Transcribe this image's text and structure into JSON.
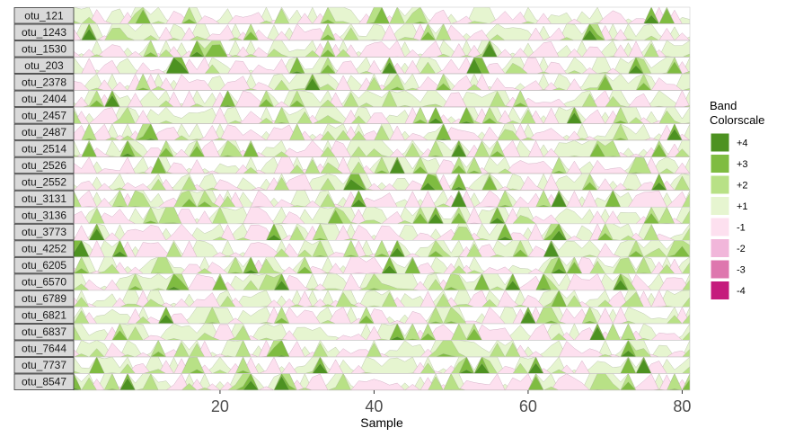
{
  "chart_data": {
    "type": "area",
    "subtype": "horizon",
    "xlabel": "Sample",
    "ylabel": "",
    "xlim": [
      1,
      81
    ],
    "x_ticks": [
      20,
      40,
      60,
      80
    ],
    "rows": [
      "otu_121",
      "otu_1243",
      "otu_1530",
      "otu_203",
      "otu_2378",
      "otu_2404",
      "otu_2457",
      "otu_2487",
      "otu_2514",
      "otu_2526",
      "otu_2552",
      "otu_3131",
      "otu_3136",
      "otu_3773",
      "otu_4252",
      "otu_6205",
      "otu_6570",
      "otu_6789",
      "otu_6821",
      "otu_6837",
      "otu_7644",
      "otu_7737",
      "otu_8547"
    ],
    "legend": {
      "title_lines": [
        "Band",
        "Colorscale"
      ],
      "position": "right",
      "entries": [
        {
          "label": "+4",
          "color": "#4d9221"
        },
        {
          "label": "+3",
          "color": "#7fbc41"
        },
        {
          "label": "+2",
          "color": "#b8e186"
        },
        {
          "label": "+1",
          "color": "#e6f5d0"
        },
        {
          "label": "-1",
          "color": "#fde0ef"
        },
        {
          "label": "-2",
          "color": "#f1b6da"
        },
        {
          "label": "-3",
          "color": "#de77ae"
        },
        {
          "label": "-4",
          "color": "#c51b7d"
        }
      ]
    }
  }
}
